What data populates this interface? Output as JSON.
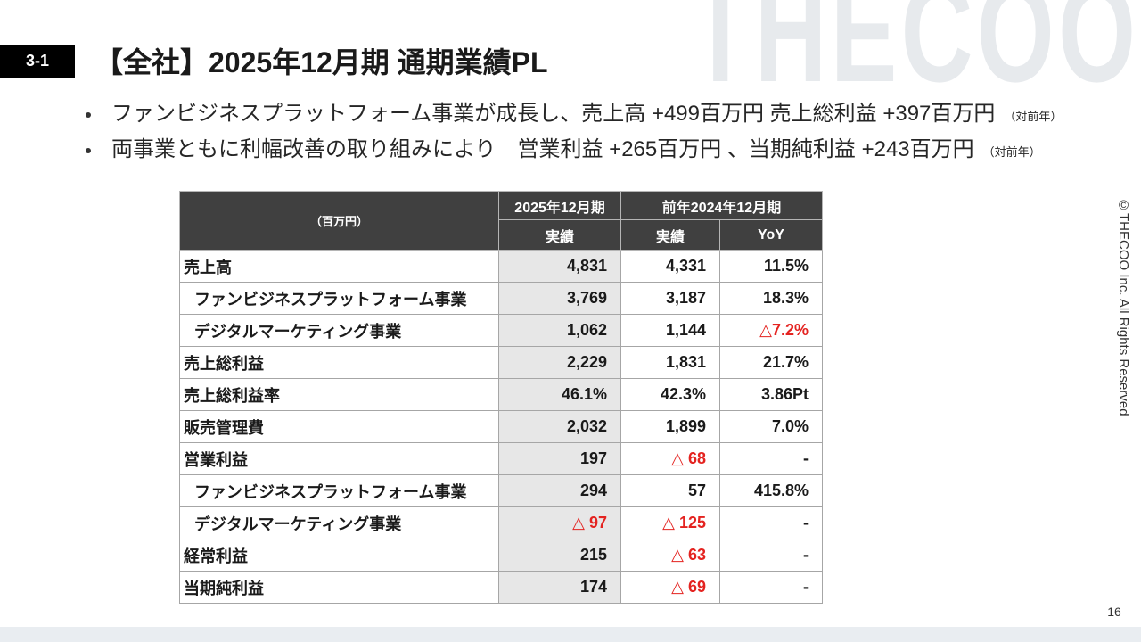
{
  "slide": {
    "watermark": "THECOO",
    "section_number": "3-1",
    "title": "【全社】2025年12月期 通期業績PL",
    "copyright": "©THECOO Inc. All Rights Reserved",
    "page_number": "16"
  },
  "bullets": [
    {
      "text": "ファンビジネスプラットフォーム事業が成長し、売上高 +499百万円 売上総利益 +397百万円",
      "note": "（対前年）"
    },
    {
      "text": "両事業ともに利幅改善の取り組みにより　営業利益 +265百万円 、当期純利益 +243百万円",
      "note": "（対前年）"
    }
  ],
  "table": {
    "unit_label": "（百万円）",
    "header": {
      "current_period": "2025年12月期",
      "previous_period": "前年2024年12月期",
      "current_basis": "実績",
      "previous_basis": "実績",
      "change": "YoY"
    },
    "rows": [
      {
        "label": "売上高",
        "current": "4,831",
        "previous": "4,331",
        "yoy": "11.5%"
      },
      {
        "label": "ファンビジネスプラットフォーム事業",
        "current": "3,769",
        "previous": "3,187",
        "yoy": "18.3%"
      },
      {
        "label": "デジタルマーケティング事業",
        "current": "1,062",
        "previous": "1,144",
        "yoy": "△7.2%"
      },
      {
        "label": "売上総利益",
        "current": "2,229",
        "previous": "1,831",
        "yoy": "21.7%"
      },
      {
        "label": "売上総利益率",
        "current": "46.1%",
        "previous": "42.3%",
        "yoy": "3.86Pt"
      },
      {
        "label": "販売管理費",
        "current": "2,032",
        "previous": "1,899",
        "yoy": "7.0%"
      },
      {
        "label": "営業利益",
        "current": "197",
        "previous": "△ 68",
        "yoy": "-"
      },
      {
        "label": "ファンビジネスプラットフォーム事業",
        "current": "294",
        "previous": "57",
        "yoy": "415.8%"
      },
      {
        "label": "デジタルマーケティング事業",
        "current": "△ 97",
        "previous": "△ 125",
        "yoy": "-"
      },
      {
        "label": "経常利益",
        "current": "215",
        "previous": "△ 63",
        "yoy": "-"
      },
      {
        "label": "当期純利益",
        "current": "174",
        "previous": "△ 69",
        "yoy": "-"
      }
    ]
  },
  "colors": {
    "badge_background": "#000000",
    "table_header_background": "#404040",
    "current_column_background": "#e7e7e7",
    "negative_value": "#e42320",
    "watermark": "#e7eaed",
    "footer_band": "#e9edf1"
  }
}
